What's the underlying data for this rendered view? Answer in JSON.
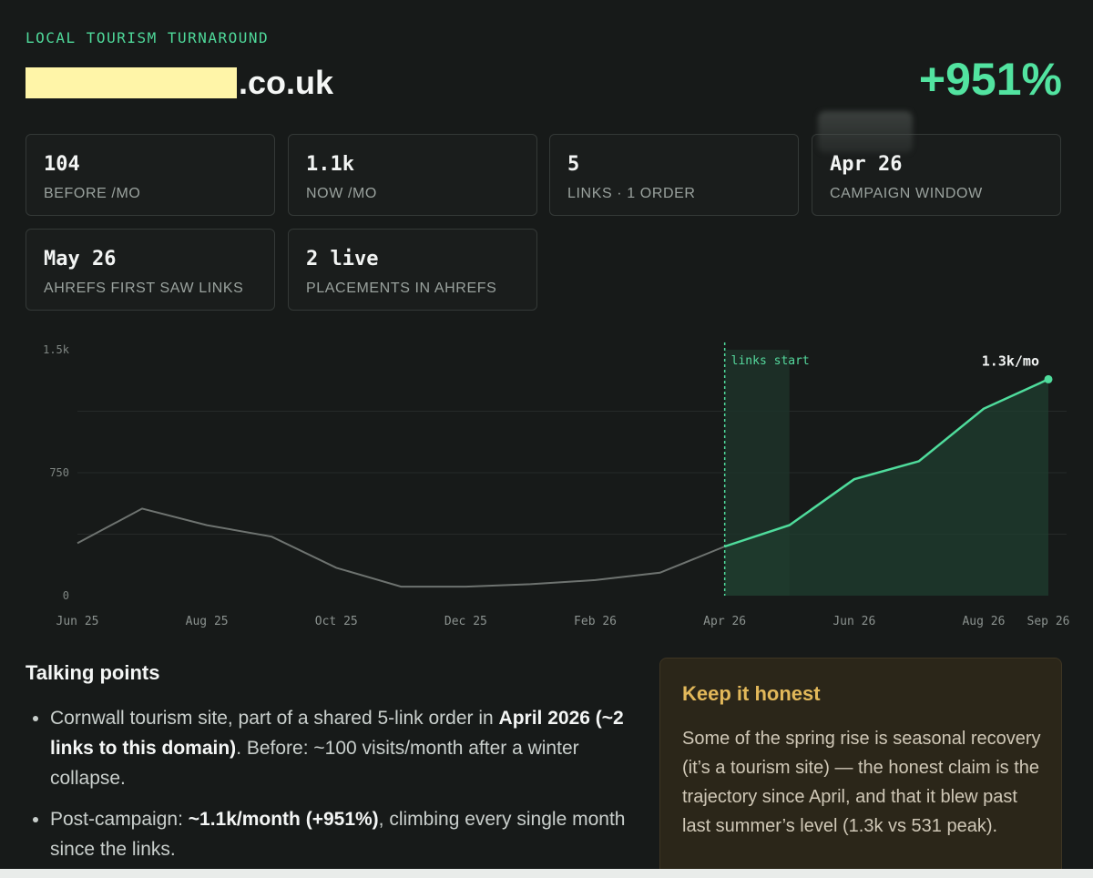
{
  "header": {
    "eyebrow": "LOCAL TOURISM TURNAROUND",
    "domain_suffix": ".co.uk",
    "headline_change": "+951%"
  },
  "stats": [
    {
      "value": "104",
      "label": "BEFORE /MO"
    },
    {
      "value": "1.1k",
      "label": "NOW /MO"
    },
    {
      "value": "5",
      "label": "LINKS · 1 ORDER"
    },
    {
      "value": "Apr 26",
      "label": "CAMPAIGN WINDOW"
    },
    {
      "value": "May 26",
      "label": "AHREFS FIRST SAW LINKS"
    },
    {
      "value": "2 live",
      "label": "PLACEMENTS IN AHREFS"
    }
  ],
  "chart_data": {
    "type": "line",
    "x_labels": [
      "Jun 25",
      "Aug 25",
      "Oct 25",
      "Dec 25",
      "Feb 26",
      "Apr 26",
      "Jun 26",
      "Aug 26",
      "Sep 26"
    ],
    "x": [
      "Jun 25",
      "Jul 25",
      "Aug 25",
      "Sep 25",
      "Oct 25",
      "Nov 25",
      "Dec 25",
      "Jan 26",
      "Feb 26",
      "Mar 26",
      "Apr 26",
      "May 26",
      "Jun 26",
      "Jul 26",
      "Aug 26",
      "Sep 26"
    ],
    "values": [
      320,
      531,
      430,
      360,
      170,
      55,
      55,
      70,
      95,
      140,
      300,
      430,
      710,
      820,
      1140,
      1320
    ],
    "ylim": [
      0,
      1500
    ],
    "y_ticks": [
      "1.5k",
      "750",
      "0"
    ],
    "gridlines": [
      1125,
      750,
      375
    ],
    "annotation_start": {
      "x": "Apr 26",
      "label": "links start"
    },
    "end_label": "1.3k/mo",
    "colors": {
      "before": "#6e7370",
      "after": "#4fdc9c",
      "fill": "#1f3d2f"
    }
  },
  "talking_points": {
    "title": "Talking points",
    "items": [
      {
        "parts": [
          {
            "t": "Cornwall tourism site, part of a shared 5-link order in ",
            "b": false
          },
          {
            "t": "April 2026 (~2 links to this domain)",
            "b": true
          },
          {
            "t": ". Before: ~100 visits/month after a winter collapse.",
            "b": false
          }
        ]
      },
      {
        "parts": [
          {
            "t": "Post-campaign: ",
            "b": false
          },
          {
            "t": "~1.1k/month (+951%)",
            "b": true
          },
          {
            "t": ", climbing every single month since the links.",
            "b": false
          }
        ]
      }
    ]
  },
  "honest_box": {
    "title": "Keep it honest",
    "body": "Some of the spring rise is seasonal recovery (it’s a tourism site) — the honest claim is the trajectory since April, and that it blew past last summer’s level (1.3k vs 531 peak)."
  }
}
